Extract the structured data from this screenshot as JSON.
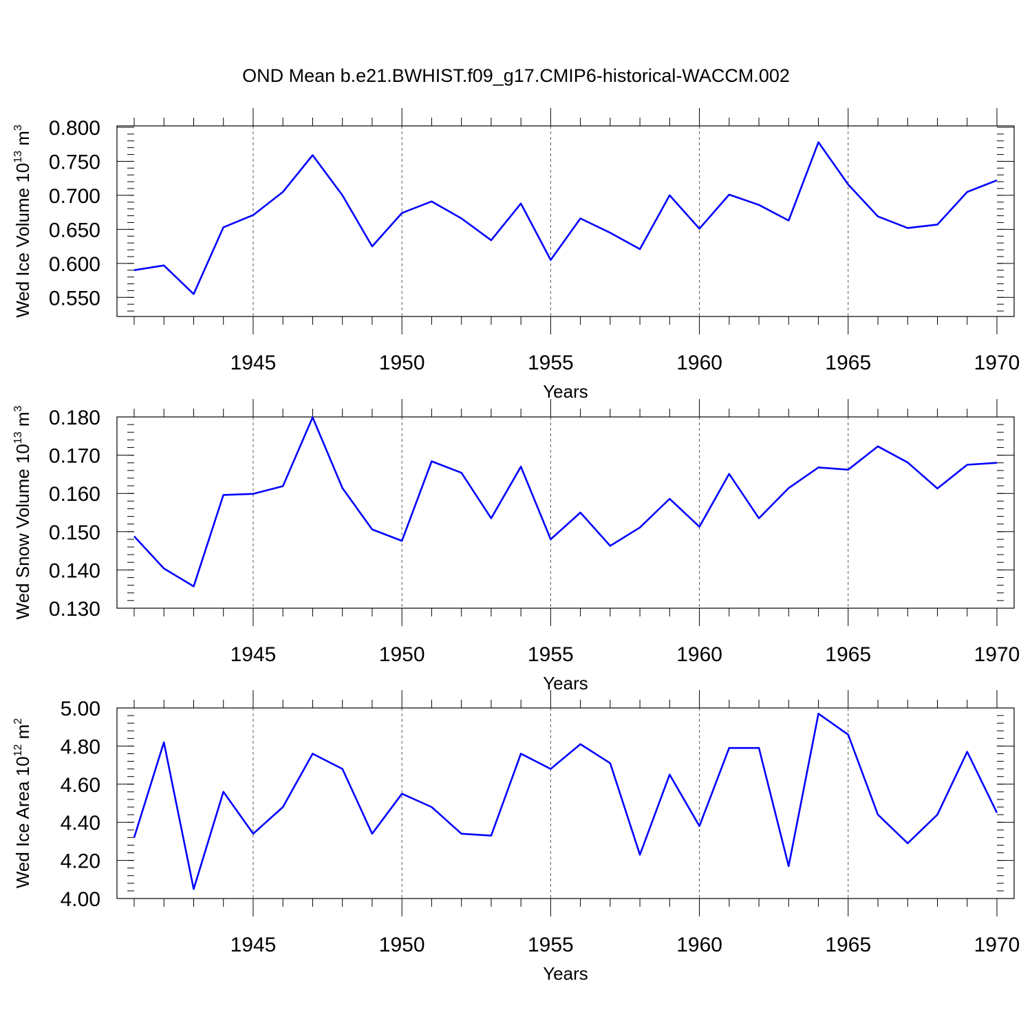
{
  "chart_data": {
    "title": "OND Mean b.e21.BWHIST.f09_g17.CMIP6-historical-WACCM.002",
    "type": "line",
    "x": [
      1941,
      1942,
      1943,
      1944,
      1945,
      1946,
      1947,
      1948,
      1949,
      1950,
      1951,
      1952,
      1953,
      1954,
      1955,
      1956,
      1957,
      1958,
      1959,
      1960,
      1961,
      1962,
      1963,
      1964,
      1965,
      1966,
      1967,
      1968,
      1969,
      1970
    ],
    "xlim": [
      1941,
      1970
    ],
    "xticks": [
      "1945",
      "1950",
      "1955",
      "1960",
      "1965",
      "1970"
    ],
    "grid_x": [
      1945,
      1950,
      1955,
      1960,
      1965
    ],
    "line_color": "#0000ff",
    "panels": [
      {
        "name": "ice-volume",
        "ylabel": "Wed Ice Volume 10",
        "ylabel_exp": "13",
        "ylabel_unit": " m",
        "ylabel_unit_exp": "3",
        "xlabel": "Years",
        "ylim": [
          0.522,
          0.802
        ],
        "yticks": [
          "0.550",
          "0.600",
          "0.650",
          "0.700",
          "0.750",
          "0.800"
        ],
        "values": [
          0.59,
          0.597,
          0.555,
          0.653,
          0.671,
          0.705,
          0.759,
          0.7,
          0.625,
          0.674,
          0.691,
          0.666,
          0.634,
          0.688,
          0.605,
          0.666,
          0.645,
          0.621,
          0.7,
          0.651,
          0.701,
          0.686,
          0.663,
          0.778,
          0.716,
          0.669,
          0.652,
          0.657,
          0.705,
          0.722
        ]
      },
      {
        "name": "snow-volume",
        "ylabel": "Wed Snow Volume 10",
        "ylabel_exp": "13",
        "ylabel_unit": " m",
        "ylabel_unit_exp": "3",
        "xlabel": "Years",
        "ylim": [
          0.13,
          0.18
        ],
        "yticks": [
          "0.130",
          "0.140",
          "0.150",
          "0.160",
          "0.170",
          "0.180"
        ],
        "values": [
          0.1488,
          0.1404,
          0.1357,
          0.1596,
          0.1599,
          0.1619,
          0.1799,
          0.1614,
          0.1506,
          0.1476,
          0.1684,
          0.1654,
          0.1535,
          0.167,
          0.148,
          0.155,
          0.1463,
          0.1511,
          0.1586,
          0.1513,
          0.1651,
          0.1535,
          0.1614,
          0.1668,
          0.1662,
          0.1723,
          0.1681,
          0.1613,
          0.1675,
          0.168
        ]
      },
      {
        "name": "ice-area",
        "ylabel": "Wed Ice Area 10",
        "ylabel_exp": "12",
        "ylabel_unit": " m",
        "ylabel_unit_exp": "2",
        "xlabel": "Years",
        "ylim": [
          4.0,
          5.0
        ],
        "yticks": [
          "4.00",
          "4.20",
          "4.40",
          "4.60",
          "4.80",
          "5.00"
        ],
        "values": [
          4.32,
          4.82,
          4.05,
          4.56,
          4.34,
          4.48,
          4.76,
          4.68,
          4.34,
          4.55,
          4.48,
          4.34,
          4.33,
          4.76,
          4.68,
          4.81,
          4.71,
          4.23,
          4.65,
          4.38,
          4.79,
          4.79,
          4.17,
          4.97,
          4.86,
          4.44,
          4.29,
          4.44,
          4.77,
          4.45
        ]
      }
    ]
  }
}
